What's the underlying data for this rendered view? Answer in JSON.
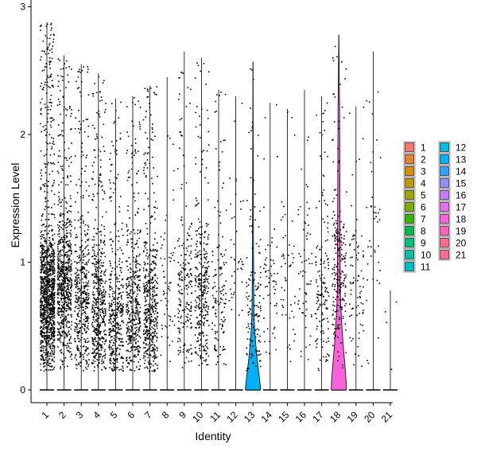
{
  "chart_data": {
    "type": "violin",
    "xlabel": "Identity",
    "ylabel": "Expression Level",
    "ylim": [
      0,
      3
    ],
    "yticks": [
      0,
      1,
      2,
      3
    ],
    "categories": [
      "1",
      "2",
      "3",
      "4",
      "5",
      "6",
      "7",
      "8",
      "9",
      "10",
      "11",
      "12",
      "13",
      "14",
      "15",
      "16",
      "17",
      "18",
      "19",
      "20",
      "21"
    ],
    "colors": [
      "#F8766D",
      "#EA8331",
      "#D89000",
      "#C09B00",
      "#A3A500",
      "#7CAE00",
      "#39B600",
      "#00BB4E",
      "#00BF7D",
      "#00C1A3",
      "#00BFC4",
      "#00BAE0",
      "#00B0F6",
      "#35A2FF",
      "#9590FF",
      "#C77CFF",
      "#E76BF3",
      "#FA62DB",
      "#FF62BC",
      "#FF6C90",
      "#FF6C90"
    ],
    "max_values": [
      2.88,
      2.62,
      2.55,
      2.48,
      2.28,
      2.3,
      2.38,
      2.45,
      2.65,
      2.6,
      2.35,
      2.3,
      2.57,
      2.25,
      2.2,
      2.35,
      2.3,
      2.78,
      2.22,
      2.65,
      0.78
    ],
    "point_density": [
      1200,
      700,
      450,
      500,
      380,
      420,
      480,
      60,
      200,
      320,
      140,
      40,
      140,
      60,
      50,
      60,
      150,
      220,
      80,
      40,
      4
    ],
    "point_center": [
      0.72,
      0.85,
      0.7,
      0.6,
      0.55,
      0.6,
      0.62,
      0.8,
      0.8,
      0.75,
      0.7,
      1.0,
      0.6,
      0.8,
      0.9,
      0.9,
      0.7,
      0.9,
      0.8,
      1.3,
      0.5
    ],
    "violin_bulge_width": [
      0,
      0,
      0,
      0,
      0,
      0,
      0,
      0,
      0,
      0,
      0,
      0,
      0.42,
      0,
      0,
      0,
      0,
      0.45,
      0,
      0,
      0
    ],
    "legend": {
      "placement": "right",
      "columns": [
        [
          "1",
          "2",
          "3",
          "4",
          "5",
          "6",
          "7",
          "8",
          "9",
          "10",
          "11"
        ],
        [
          "12",
          "13",
          "14",
          "15",
          "16",
          "17",
          "18",
          "19",
          "20",
          "21"
        ]
      ]
    }
  }
}
